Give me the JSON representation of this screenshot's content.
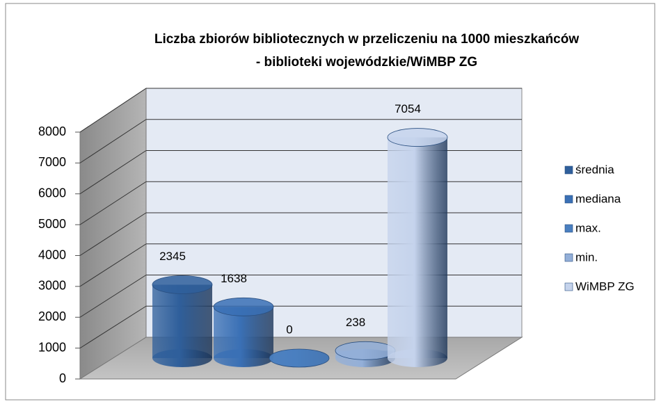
{
  "chart_data": {
    "type": "bar",
    "title": [
      "Liczba zbiorów bibliotecznych w przeliczeniu na 1000 mieszkańców",
      "- biblioteki wojewódzkie/WiMBP ZG"
    ],
    "categories": [
      null
    ],
    "series": [
      {
        "name": "średnia",
        "color": "#2f5f9b",
        "values": [
          2345
        ]
      },
      {
        "name": "mediana",
        "color": "#3a70b5",
        "values": [
          1638
        ]
      },
      {
        "name": "max.",
        "color": "#4a7fc0",
        "values": [
          0
        ]
      },
      {
        "name": "min.",
        "color": "#93afd8",
        "values": [
          238
        ]
      },
      {
        "name": "WiMBP ZG",
        "color": "#c5d3ec",
        "values": [
          7054
        ]
      }
    ],
    "ylim": [
      0,
      8000
    ],
    "yticks": [
      0,
      1000,
      2000,
      3000,
      4000,
      5000,
      6000,
      7000,
      8000
    ],
    "grid": true,
    "legend": "right",
    "data_labels": true
  }
}
